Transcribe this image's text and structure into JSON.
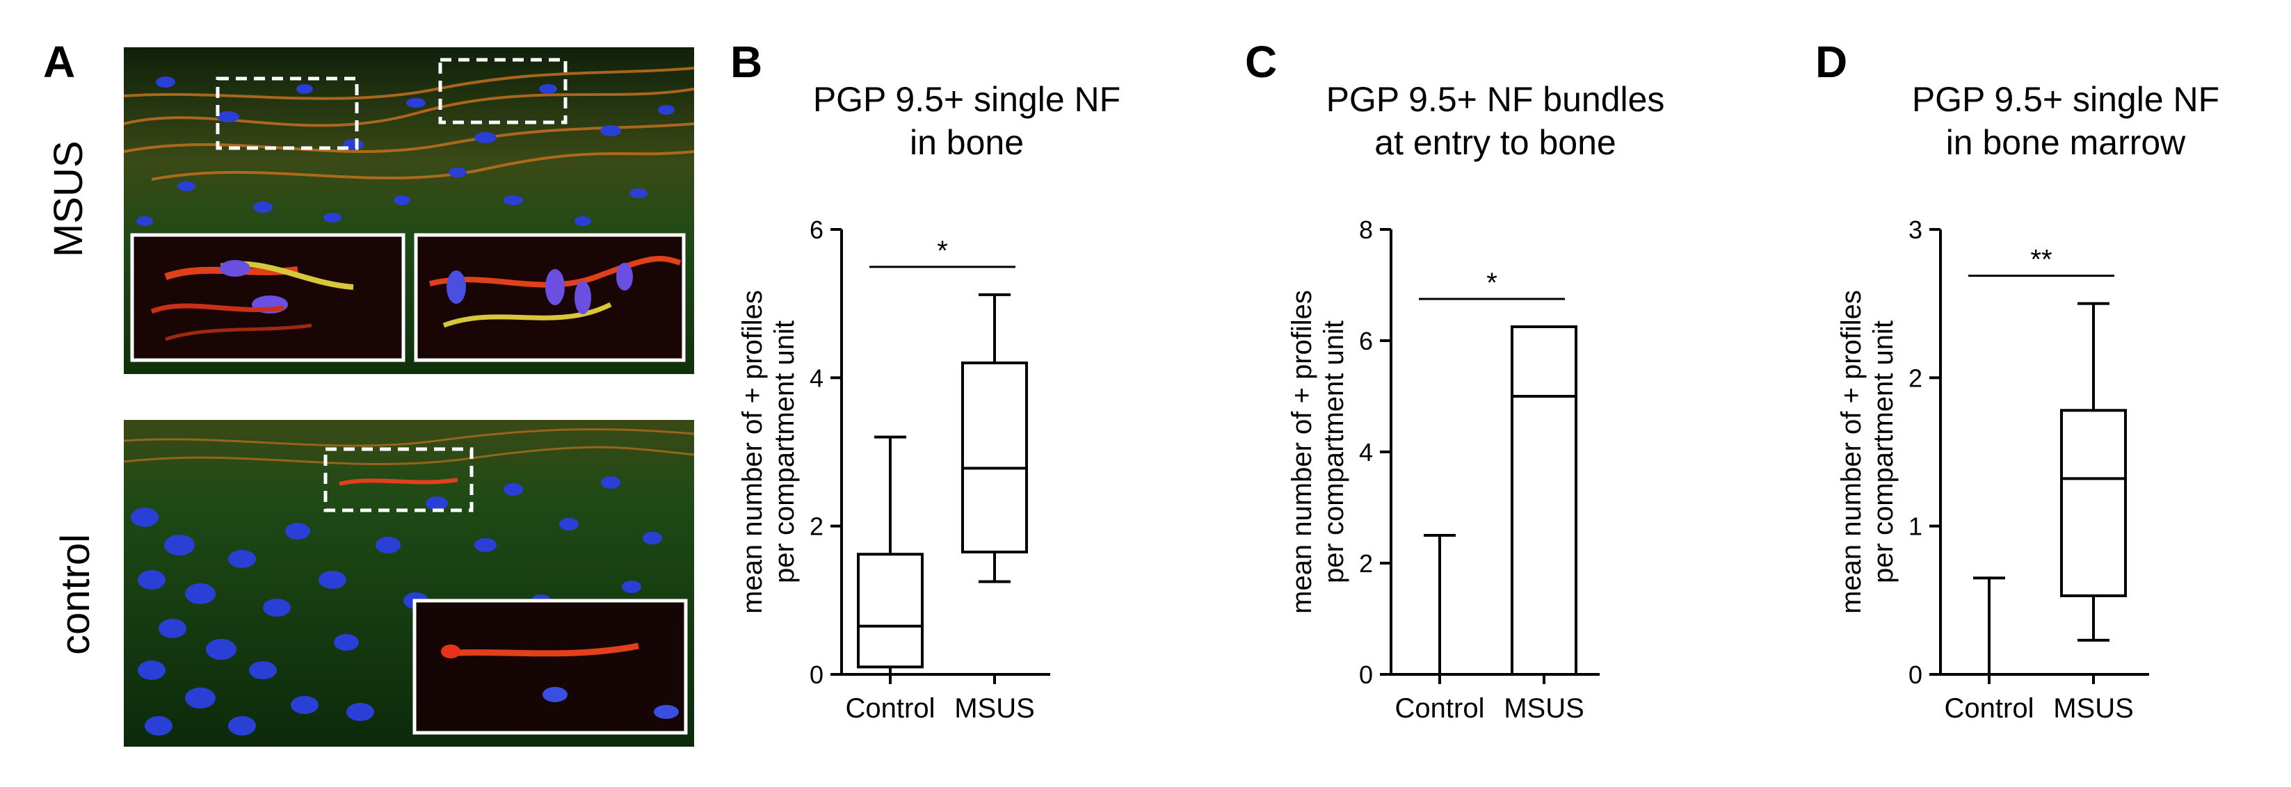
{
  "panel_a": {
    "letter": "A",
    "rows": [
      {
        "label": "MSUS"
      },
      {
        "label": "control"
      }
    ]
  },
  "colors": {
    "background": "#ffffff",
    "ink": "#000000",
    "nuclei": "#2a3fd6",
    "tissue_green": "#1f5a1a",
    "fibre_red": "#e0401a",
    "fibre_yellow": "#d6c83a"
  },
  "chart_data": [
    {
      "letter": "B",
      "type": "box",
      "title": [
        "PGP 9.5+ single NF",
        "in bone"
      ],
      "ylabel": [
        "mean number of + profiles",
        "per compartment unit"
      ],
      "ylim": [
        0,
        6
      ],
      "yticks": [
        "0",
        "2",
        "4",
        "6"
      ],
      "ytick_values": [
        0,
        2,
        4,
        6
      ],
      "categories": [
        "Control",
        "MSUS"
      ],
      "boxes": [
        {
          "name": "Control",
          "min": 0.0,
          "q1": 0.1,
          "median": 0.65,
          "q3": 1.62,
          "max": 3.2
        },
        {
          "name": "MSUS",
          "min": 1.25,
          "q1": 1.65,
          "median": 2.78,
          "q3": 4.2,
          "max": 5.12
        }
      ],
      "significance": "*"
    },
    {
      "letter": "C",
      "type": "box",
      "title": [
        "PGP 9.5+ NF bundles",
        "at entry to bone"
      ],
      "ylabel": [
        "mean number of + profiles",
        "per compartment unit"
      ],
      "ylim": [
        0,
        8
      ],
      "yticks": [
        "0",
        "2",
        "4",
        "6",
        "8"
      ],
      "ytick_values": [
        0,
        2,
        4,
        6,
        8
      ],
      "categories": [
        "Control",
        "MSUS"
      ],
      "boxes": [
        {
          "name": "Control",
          "min": 0.0,
          "q1": 0.0,
          "median": 0.0,
          "q3": 0.0,
          "max": 2.5
        },
        {
          "name": "MSUS",
          "min": 0.0,
          "q1": 0.0,
          "median": 5.0,
          "q3": 6.25,
          "max": 6.25
        }
      ],
      "significance": "*"
    },
    {
      "letter": "D",
      "type": "box",
      "title": [
        "PGP 9.5+ single NF",
        "in bone marrow"
      ],
      "ylabel": [
        "mean number of + profiles",
        "per compartment unit"
      ],
      "ylim": [
        0,
        3
      ],
      "yticks": [
        "0",
        "1",
        "2",
        "3"
      ],
      "ytick_values": [
        0,
        1,
        2,
        3
      ],
      "categories": [
        "Control",
        "MSUS"
      ],
      "boxes": [
        {
          "name": "Control",
          "min": 0.0,
          "q1": 0.0,
          "median": 0.0,
          "q3": 0.0,
          "max": 0.65
        },
        {
          "name": "MSUS",
          "min": 0.23,
          "q1": 0.53,
          "median": 1.32,
          "q3": 1.78,
          "max": 2.5
        }
      ],
      "significance": "**"
    }
  ]
}
